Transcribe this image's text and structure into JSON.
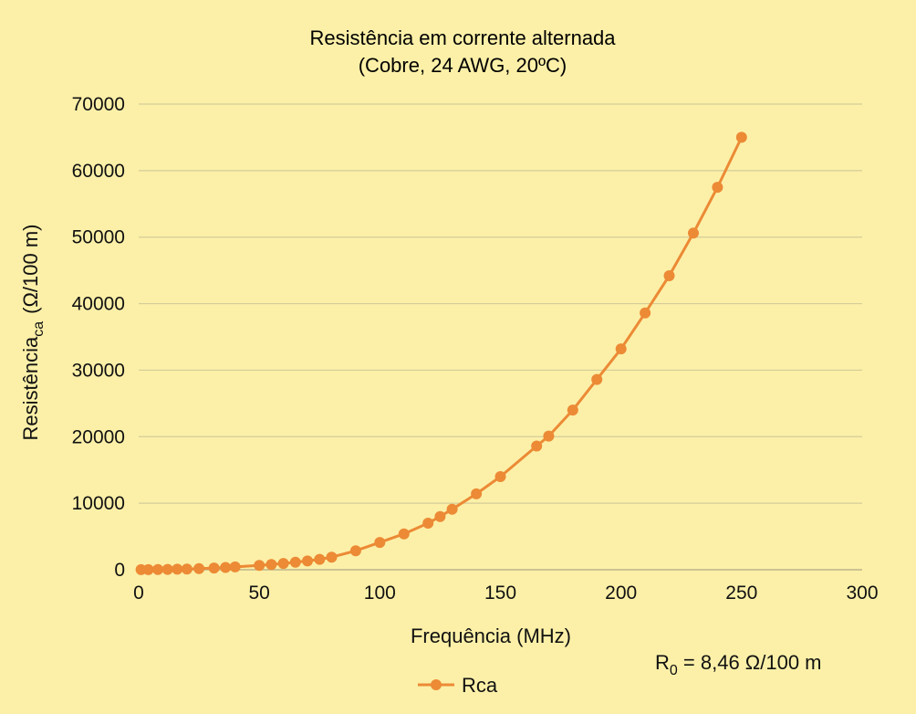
{
  "chart_data": {
    "type": "line",
    "title": "Resistência em corrente alternada",
    "subtitle": "(Cobre, 24 AWG, 20ºC)",
    "xlabel": "Frequência (MHz)",
    "ylabel": {
      "main": "Resistência",
      "subscript": "ca",
      "unit": "(Ω/100 m)"
    },
    "annotation": {
      "main": "R",
      "subscript": "0",
      "rest": " = 8,46 Ω/100 m"
    },
    "xlim": [
      0,
      300
    ],
    "ylim": [
      0,
      70000
    ],
    "x_ticks": [
      "0",
      "50",
      "100",
      "150",
      "200",
      "250",
      "300"
    ],
    "y_ticks": [
      "0",
      "10000",
      "20000",
      "30000",
      "40000",
      "50000",
      "60000",
      "70000"
    ],
    "grid": "horizontal",
    "legend_position": "bottom",
    "colors": {
      "series": "#ec8a35",
      "grid": "#d4cc9a",
      "background": "#fcf0a8"
    },
    "series": [
      {
        "name": "Rca",
        "x": [
          1,
          4,
          8,
          12,
          16,
          20,
          25,
          31.25,
          36,
          40,
          50,
          55,
          60,
          65,
          70,
          75,
          80,
          90,
          100,
          110,
          120,
          125,
          130,
          140,
          150,
          165,
          170,
          180,
          190,
          200,
          210,
          220,
          230,
          240,
          250
        ],
        "y": [
          10,
          20,
          30,
          50,
          80,
          110,
          170,
          260,
          340,
          420,
          650,
          790,
          950,
          1120,
          1320,
          1560,
          1900,
          2850,
          4100,
          5400,
          7000,
          8000,
          9100,
          11400,
          14000,
          18600,
          20100,
          24000,
          28600,
          33200,
          38600,
          44200,
          50600,
          57500,
          65000
        ]
      }
    ]
  }
}
